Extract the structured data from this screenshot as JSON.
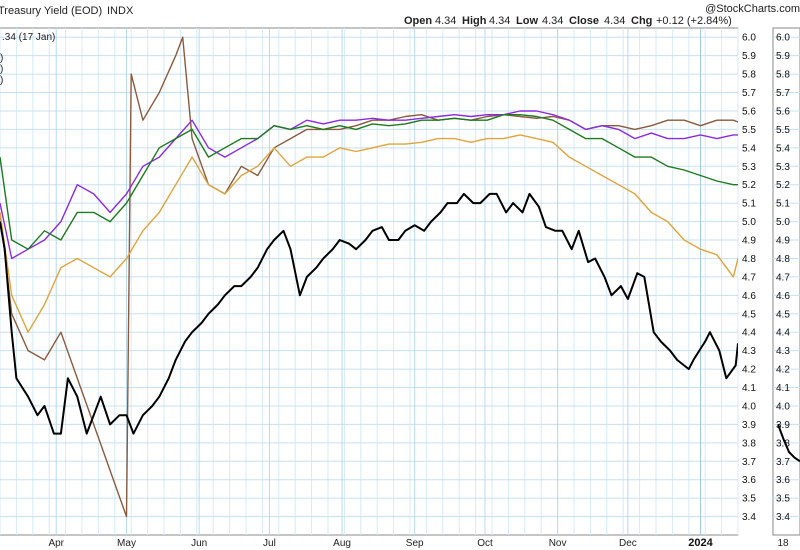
{
  "chart_data": {
    "type": "line",
    "title": "Treasury Yield (EOD)",
    "exchange": "INDX",
    "watermark": "@StockCharts.com",
    "legend_value": ".34 (17 Jan)",
    "ohlc": {
      "open_label": "Open",
      "open": "4.34",
      "high_label": "High",
      "high": "4.34",
      "low_label": "Low",
      "low": "4.34",
      "close_label": "Close",
      "close": "4.34",
      "chg_label": "Chg",
      "chg": "+0.12 (+2.84%)"
    },
    "ylim": [
      3.3,
      6.05
    ],
    "yticks": [
      "6.0",
      "5.9",
      "5.8",
      "5.7",
      "5.6",
      "5.5",
      "5.4",
      "5.3",
      "5.2",
      "5.1",
      "5.0",
      "4.9",
      "4.8",
      "4.7",
      "4.6",
      "4.5",
      "4.4",
      "4.3",
      "4.2",
      "4.1",
      "4.0",
      "3.9",
      "3.8",
      "3.7",
      "3.6",
      "3.5",
      "3.4"
    ],
    "xlim": [
      "2023-03-08",
      "2024-01-17"
    ],
    "months": [
      {
        "label": "Apr",
        "date": "2023-04-01"
      },
      {
        "label": "May",
        "date": "2023-05-01"
      },
      {
        "label": "Jun",
        "date": "2023-06-01"
      },
      {
        "label": "Jul",
        "date": "2023-07-01"
      },
      {
        "label": "Aug",
        "date": "2023-08-01"
      },
      {
        "label": "Sep",
        "date": "2023-09-01"
      },
      {
        "label": "Oct",
        "date": "2023-10-01"
      },
      {
        "label": "Nov",
        "date": "2023-11-01"
      },
      {
        "label": "Dec",
        "date": "2023-12-01"
      },
      {
        "label": "2024",
        "date": "2024-01-01",
        "bold": true
      }
    ],
    "right_panel": {
      "yticks": [
        "6.0",
        "5.9",
        "5.8",
        "5.7",
        "5.6",
        "5.5",
        "5.4",
        "5.3",
        "5.2",
        "5.1",
        "5.0",
        "4.9",
        "4.8",
        "4.7",
        "4.6",
        "4.5",
        "4.4",
        "4.3",
        "4.2",
        "4.1",
        "4.0",
        "3.9",
        "3.8",
        "3.7",
        "3.6",
        "3.5",
        "3.4"
      ],
      "xlabel": "18",
      "values": [
        3.9,
        3.82,
        3.75,
        3.72,
        3.7
      ]
    },
    "series": [
      {
        "name": "",
        "color": "#8b5a3c",
        "x": [
          "2023-03-08",
          "2023-03-13",
          "2023-03-20",
          "2023-03-27",
          "2023-04-03",
          "2023-04-10",
          "2023-04-17",
          "2023-04-24",
          "2023-05-01",
          "2023-05-03",
          "2023-05-08",
          "2023-05-15",
          "2023-05-22",
          "2023-05-25",
          "2023-05-29",
          "2023-06-05",
          "2023-06-12",
          "2023-06-19",
          "2023-06-26",
          "2023-07-03",
          "2023-07-10",
          "2023-07-17",
          "2023-07-24",
          "2023-07-31",
          "2023-08-07",
          "2023-08-14",
          "2023-08-21",
          "2023-08-28",
          "2023-09-04",
          "2023-09-11",
          "2023-09-18",
          "2023-09-25",
          "2023-10-02",
          "2023-10-09",
          "2023-10-16",
          "2023-10-23",
          "2023-10-30",
          "2023-11-06",
          "2023-11-13",
          "2023-11-20",
          "2023-11-27",
          "2023-12-04",
          "2023-12-11",
          "2023-12-18",
          "2023-12-25",
          "2024-01-01",
          "2024-01-08",
          "2024-01-15",
          "2024-01-17"
        ],
        "values": [
          5.05,
          4.5,
          4.3,
          4.25,
          4.4,
          4.15,
          3.9,
          3.65,
          3.4,
          5.8,
          5.55,
          5.7,
          5.9,
          6.0,
          5.45,
          5.2,
          5.15,
          5.3,
          5.25,
          5.4,
          5.45,
          5.5,
          5.5,
          5.5,
          5.52,
          5.55,
          5.55,
          5.57,
          5.58,
          5.55,
          5.56,
          5.55,
          5.57,
          5.58,
          5.57,
          5.56,
          5.57,
          5.55,
          5.5,
          5.52,
          5.52,
          5.5,
          5.52,
          5.55,
          5.55,
          5.52,
          5.55,
          5.55,
          5.54
        ]
      },
      {
        "name": "",
        "color": "#8a2be2",
        "x": [
          "2023-03-08",
          "2023-03-13",
          "2023-03-20",
          "2023-03-27",
          "2023-04-03",
          "2023-04-10",
          "2023-04-17",
          "2023-04-24",
          "2023-05-01",
          "2023-05-08",
          "2023-05-15",
          "2023-05-22",
          "2023-05-29",
          "2023-06-05",
          "2023-06-12",
          "2023-06-19",
          "2023-06-26",
          "2023-07-03",
          "2023-07-10",
          "2023-07-17",
          "2023-07-24",
          "2023-07-31",
          "2023-08-07",
          "2023-08-14",
          "2023-08-21",
          "2023-08-28",
          "2023-09-04",
          "2023-09-11",
          "2023-09-18",
          "2023-09-25",
          "2023-10-02",
          "2023-10-09",
          "2023-10-16",
          "2023-10-23",
          "2023-10-30",
          "2023-11-06",
          "2023-11-13",
          "2023-11-20",
          "2023-11-27",
          "2023-12-04",
          "2023-12-11",
          "2023-12-18",
          "2023-12-25",
          "2024-01-01",
          "2024-01-08",
          "2024-01-15",
          "2024-01-17"
        ],
        "values": [
          5.1,
          4.8,
          4.85,
          4.9,
          5.0,
          5.2,
          5.15,
          5.05,
          5.15,
          5.3,
          5.35,
          5.45,
          5.55,
          5.4,
          5.35,
          5.4,
          5.45,
          5.52,
          5.5,
          5.55,
          5.53,
          5.55,
          5.55,
          5.56,
          5.55,
          5.55,
          5.56,
          5.57,
          5.58,
          5.57,
          5.58,
          5.58,
          5.6,
          5.6,
          5.58,
          5.55,
          5.5,
          5.52,
          5.5,
          5.45,
          5.48,
          5.45,
          5.45,
          5.47,
          5.45,
          5.47,
          5.47
        ]
      },
      {
        "name": "",
        "color": "#1e7a1e",
        "x": [
          "2023-03-08",
          "2023-03-13",
          "2023-03-20",
          "2023-03-27",
          "2023-04-03",
          "2023-04-10",
          "2023-04-17",
          "2023-04-24",
          "2023-05-01",
          "2023-05-08",
          "2023-05-15",
          "2023-05-22",
          "2023-05-29",
          "2023-06-05",
          "2023-06-12",
          "2023-06-19",
          "2023-06-26",
          "2023-07-03",
          "2023-07-10",
          "2023-07-17",
          "2023-07-24",
          "2023-07-31",
          "2023-08-07",
          "2023-08-14",
          "2023-08-21",
          "2023-08-28",
          "2023-09-04",
          "2023-09-11",
          "2023-09-18",
          "2023-09-25",
          "2023-10-02",
          "2023-10-09",
          "2023-10-16",
          "2023-10-23",
          "2023-10-30",
          "2023-11-06",
          "2023-11-13",
          "2023-11-20",
          "2023-11-27",
          "2023-12-04",
          "2023-12-11",
          "2023-12-18",
          "2023-12-25",
          "2024-01-01",
          "2024-01-08",
          "2024-01-15",
          "2024-01-17"
        ],
        "values": [
          5.35,
          4.9,
          4.85,
          4.95,
          4.9,
          5.05,
          5.05,
          5.0,
          5.1,
          5.25,
          5.4,
          5.45,
          5.5,
          5.35,
          5.4,
          5.45,
          5.45,
          5.52,
          5.5,
          5.52,
          5.5,
          5.52,
          5.5,
          5.53,
          5.52,
          5.53,
          5.55,
          5.55,
          5.56,
          5.55,
          5.55,
          5.58,
          5.58,
          5.57,
          5.55,
          5.5,
          5.45,
          5.45,
          5.4,
          5.35,
          5.35,
          5.3,
          5.28,
          5.25,
          5.22,
          5.2,
          5.2
        ]
      },
      {
        "name": "",
        "color": "#e0a43a",
        "x": [
          "2023-03-08",
          "2023-03-13",
          "2023-03-20",
          "2023-03-27",
          "2023-04-03",
          "2023-04-10",
          "2023-04-17",
          "2023-04-24",
          "2023-05-01",
          "2023-05-08",
          "2023-05-15",
          "2023-05-22",
          "2023-05-29",
          "2023-06-05",
          "2023-06-12",
          "2023-06-19",
          "2023-06-26",
          "2023-07-03",
          "2023-07-10",
          "2023-07-17",
          "2023-07-24",
          "2023-07-31",
          "2023-08-07",
          "2023-08-14",
          "2023-08-21",
          "2023-08-28",
          "2023-09-04",
          "2023-09-11",
          "2023-09-18",
          "2023-09-25",
          "2023-10-02",
          "2023-10-09",
          "2023-10-16",
          "2023-10-23",
          "2023-10-30",
          "2023-11-06",
          "2023-11-13",
          "2023-11-20",
          "2023-11-27",
          "2023-12-04",
          "2023-12-11",
          "2023-12-18",
          "2023-12-25",
          "2024-01-01",
          "2024-01-08",
          "2024-01-15",
          "2024-01-17"
        ],
        "values": [
          5.05,
          4.6,
          4.4,
          4.55,
          4.75,
          4.8,
          4.75,
          4.7,
          4.8,
          4.95,
          5.05,
          5.2,
          5.35,
          5.2,
          5.15,
          5.25,
          5.3,
          5.4,
          5.3,
          5.35,
          5.35,
          5.4,
          5.38,
          5.4,
          5.42,
          5.42,
          5.43,
          5.45,
          5.45,
          5.43,
          5.45,
          5.45,
          5.47,
          5.45,
          5.43,
          5.35,
          5.3,
          5.25,
          5.2,
          5.15,
          5.05,
          5.0,
          4.9,
          4.85,
          4.82,
          4.7,
          4.8
        ]
      },
      {
        "name": "",
        "color": "#000000",
        "x": [
          "2023-03-08",
          "2023-03-10",
          "2023-03-13",
          "2023-03-15",
          "2023-03-20",
          "2023-03-24",
          "2023-03-27",
          "2023-03-31",
          "2023-04-03",
          "2023-04-06",
          "2023-04-10",
          "2023-04-14",
          "2023-04-17",
          "2023-04-20",
          "2023-04-24",
          "2023-04-28",
          "2023-05-01",
          "2023-05-04",
          "2023-05-08",
          "2023-05-12",
          "2023-05-15",
          "2023-05-19",
          "2023-05-22",
          "2023-05-26",
          "2023-05-29",
          "2023-06-02",
          "2023-06-05",
          "2023-06-09",
          "2023-06-12",
          "2023-06-16",
          "2023-06-19",
          "2023-06-23",
          "2023-06-26",
          "2023-06-30",
          "2023-07-03",
          "2023-07-07",
          "2023-07-10",
          "2023-07-14",
          "2023-07-17",
          "2023-07-21",
          "2023-07-24",
          "2023-07-28",
          "2023-07-31",
          "2023-08-04",
          "2023-08-07",
          "2023-08-11",
          "2023-08-14",
          "2023-08-18",
          "2023-08-21",
          "2023-08-25",
          "2023-08-28",
          "2023-09-01",
          "2023-09-05",
          "2023-09-08",
          "2023-09-12",
          "2023-09-15",
          "2023-09-19",
          "2023-09-22",
          "2023-09-26",
          "2023-09-29",
          "2023-10-03",
          "2023-10-06",
          "2023-10-10",
          "2023-10-13",
          "2023-10-17",
          "2023-10-20",
          "2023-10-24",
          "2023-10-27",
          "2023-10-31",
          "2023-11-03",
          "2023-11-07",
          "2023-11-10",
          "2023-11-14",
          "2023-11-17",
          "2023-11-21",
          "2023-11-24",
          "2023-11-28",
          "2023-12-01",
          "2023-12-05",
          "2023-12-08",
          "2023-12-12",
          "2023-12-15",
          "2023-12-19",
          "2023-12-22",
          "2023-12-27",
          "2023-12-29",
          "2024-01-03",
          "2024-01-05",
          "2024-01-09",
          "2024-01-12",
          "2024-01-16",
          "2024-01-17"
        ],
        "values": [
          5.0,
          4.85,
          4.4,
          4.15,
          4.05,
          3.95,
          4.0,
          3.85,
          3.85,
          4.15,
          4.05,
          3.85,
          3.95,
          4.05,
          3.9,
          3.95,
          3.95,
          3.85,
          3.95,
          4.0,
          4.05,
          4.15,
          4.25,
          4.35,
          4.4,
          4.45,
          4.5,
          4.55,
          4.6,
          4.65,
          4.65,
          4.7,
          4.75,
          4.85,
          4.9,
          4.95,
          4.85,
          4.6,
          4.7,
          4.75,
          4.8,
          4.85,
          4.9,
          4.88,
          4.85,
          4.9,
          4.95,
          4.97,
          4.9,
          4.9,
          4.95,
          4.98,
          4.95,
          5.0,
          5.05,
          5.1,
          5.1,
          5.15,
          5.1,
          5.1,
          5.15,
          5.15,
          5.05,
          5.1,
          5.05,
          5.15,
          5.08,
          4.97,
          4.95,
          4.95,
          4.85,
          4.95,
          4.78,
          4.8,
          4.7,
          4.6,
          4.65,
          4.58,
          4.72,
          4.7,
          4.4,
          4.35,
          4.3,
          4.25,
          4.2,
          4.25,
          4.35,
          4.4,
          4.3,
          4.15,
          4.22,
          4.34
        ]
      }
    ]
  }
}
